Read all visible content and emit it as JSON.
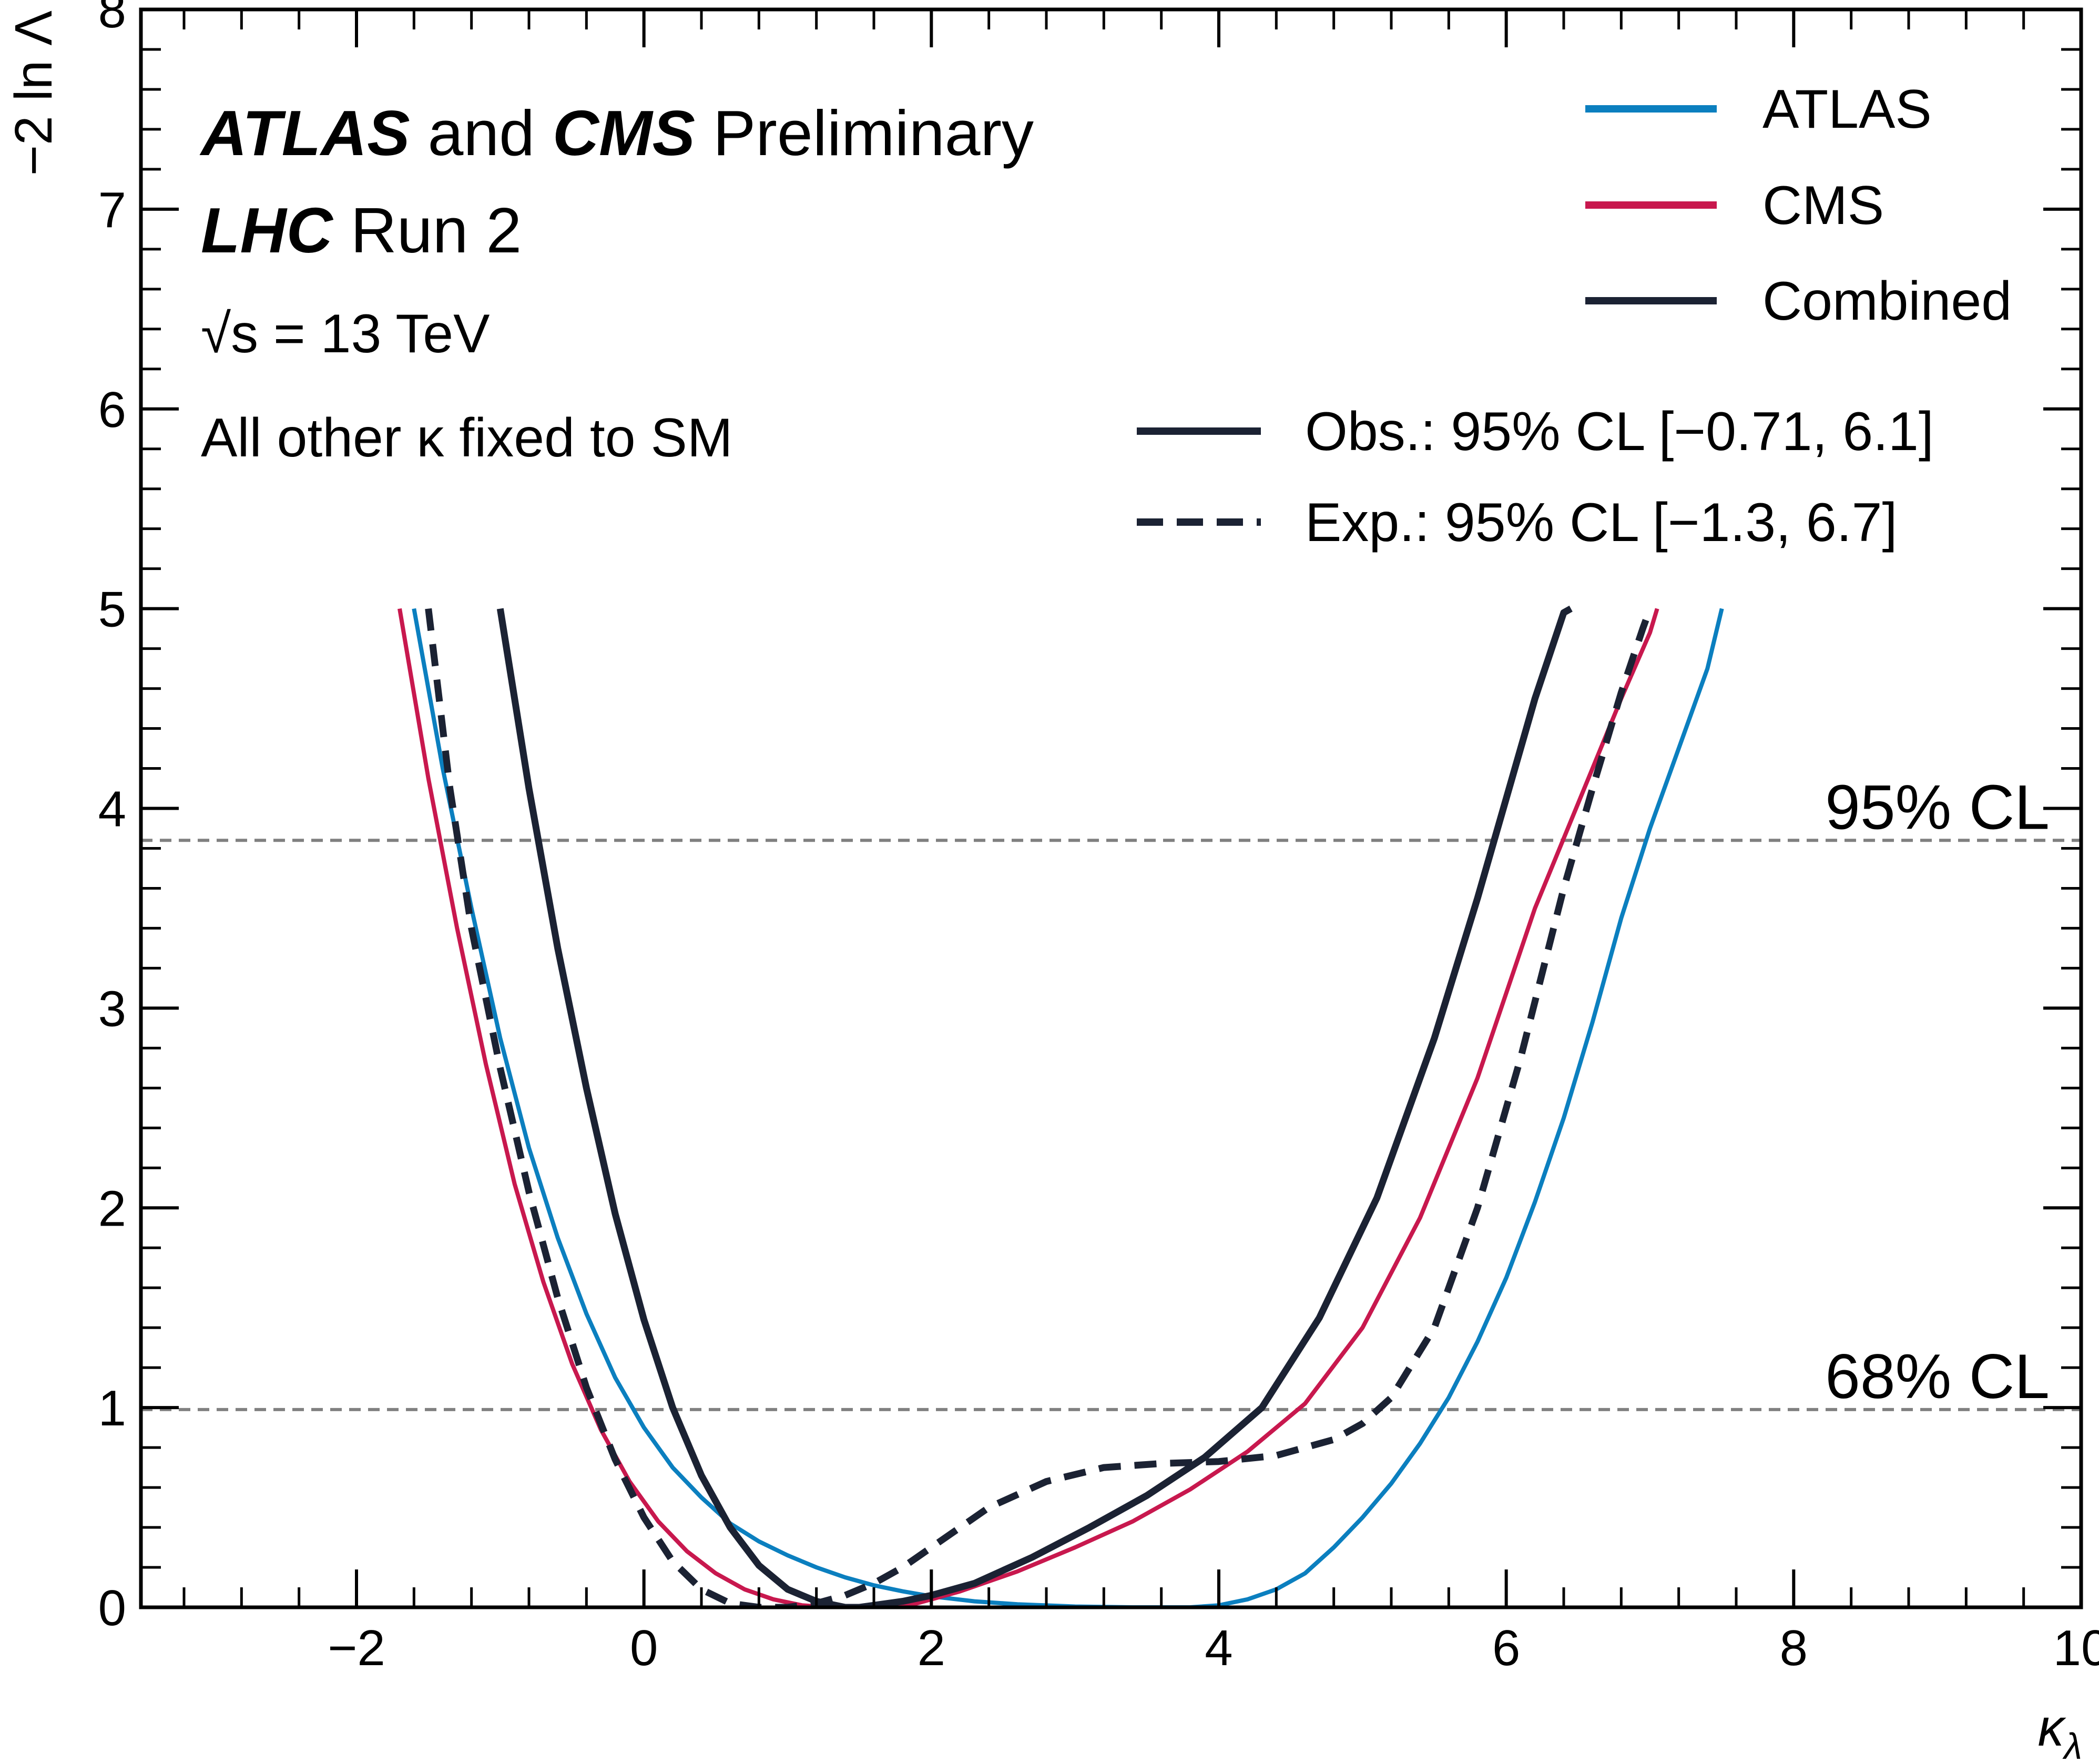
{
  "chart_data": {
    "type": "line",
    "xlabel_sym": "κ",
    "xlabel_sub": "λ",
    "ylabel": "−2 ln Λ",
    "xlim": [
      -3.5,
      10
    ],
    "ylim": [
      0,
      8
    ],
    "xticks": [
      -2,
      0,
      2,
      4,
      6,
      8,
      10
    ],
    "xtick_labels": [
      "−2",
      "0",
      "2",
      "4",
      "6",
      "8",
      "10"
    ],
    "yticks": [
      0,
      1,
      2,
      3,
      4,
      5,
      6,
      7,
      8
    ],
    "ytick_labels": [
      "0",
      "1",
      "2",
      "3",
      "4",
      "5",
      "6",
      "7",
      "8"
    ],
    "grid": false,
    "legend_position": "top-right",
    "annotations": {
      "experiment_bold1": "ATLAS",
      "experiment_and": " and ",
      "experiment_bold2": "CMS",
      "experiment_status": " Preliminary",
      "run_bold": "LHC",
      "run_text": " Run 2",
      "energy": "√s = 13 TeV",
      "assumption": "All other κ fixed to SM"
    },
    "reference_lines": [
      {
        "y": 3.84,
        "label": "95% CL",
        "color": "#808080",
        "style": "dashed"
      },
      {
        "y": 0.99,
        "label": "68% CL",
        "color": "#808080",
        "style": "dashed"
      }
    ],
    "legend_experiments": [
      {
        "name": "ATLAS",
        "color": "#0b7fbf"
      },
      {
        "name": "CMS",
        "color": "#c8184e"
      },
      {
        "name": "Combined",
        "color": "#1b2233"
      }
    ],
    "legend_styles": [
      {
        "name": "Obs.: 95% CL [−0.71, 6.1]",
        "style": "solid"
      },
      {
        "name": "Exp.:  95% CL [−1.3, 6.7]",
        "style": "dashed"
      }
    ],
    "series": [
      {
        "name": "ATLAS",
        "color": "#0b7fbf",
        "style": "solid",
        "x": [
          -1.6,
          -1.4,
          -1.2,
          -1.0,
          -0.8,
          -0.6,
          -0.4,
          -0.2,
          0.0,
          0.2,
          0.4,
          0.6,
          0.8,
          1.0,
          1.2,
          1.4,
          1.6,
          1.8,
          2.0,
          2.3,
          2.6,
          3.0,
          3.4,
          3.8,
          4.0,
          4.2,
          4.4,
          4.6,
          4.8,
          5.0,
          5.2,
          5.4,
          5.6,
          5.8,
          6.0,
          6.2,
          6.4,
          6.6,
          6.8,
          7.0,
          7.2,
          7.4,
          7.5
        ],
        "y": [
          5.0,
          4.2,
          3.5,
          2.85,
          2.3,
          1.85,
          1.47,
          1.15,
          0.9,
          0.7,
          0.55,
          0.42,
          0.33,
          0.26,
          0.2,
          0.15,
          0.11,
          0.08,
          0.055,
          0.03,
          0.015,
          0.004,
          0.0,
          0.0,
          0.01,
          0.04,
          0.09,
          0.17,
          0.3,
          0.45,
          0.62,
          0.82,
          1.05,
          1.33,
          1.65,
          2.03,
          2.45,
          2.93,
          3.45,
          3.9,
          4.3,
          4.7,
          5.0
        ]
      },
      {
        "name": "CMS",
        "color": "#c8184e",
        "style": "solid",
        "x": [
          -1.7,
          -1.5,
          -1.3,
          -1.1,
          -0.9,
          -0.7,
          -0.5,
          -0.3,
          -0.1,
          0.1,
          0.3,
          0.5,
          0.7,
          0.9,
          1.1,
          1.3,
          1.5,
          1.7,
          1.9,
          2.2,
          2.6,
          3.0,
          3.4,
          3.8,
          4.2,
          4.6,
          5.0,
          5.4,
          5.8,
          6.2,
          6.6,
          6.8,
          7.0,
          7.05
        ],
        "y": [
          5.0,
          4.15,
          3.4,
          2.72,
          2.12,
          1.63,
          1.22,
          0.89,
          0.63,
          0.43,
          0.28,
          0.17,
          0.09,
          0.04,
          0.01,
          0.0,
          0.0,
          0.0,
          0.02,
          0.08,
          0.18,
          0.3,
          0.43,
          0.59,
          0.78,
          1.02,
          1.4,
          1.95,
          2.65,
          3.5,
          4.2,
          4.55,
          4.88,
          5.0
        ]
      },
      {
        "name": "Combined",
        "color": "#1b2233",
        "style": "solid",
        "x": [
          -1.0,
          -0.8,
          -0.6,
          -0.4,
          -0.2,
          0.0,
          0.2,
          0.4,
          0.6,
          0.8,
          1.0,
          1.2,
          1.4,
          1.5,
          1.6,
          1.8,
          2.0,
          2.3,
          2.7,
          3.1,
          3.5,
          3.9,
          4.3,
          4.7,
          5.1,
          5.5,
          5.8,
          6.0,
          6.2,
          6.4,
          6.45
        ],
        "y": [
          5.0,
          4.1,
          3.3,
          2.6,
          1.97,
          1.44,
          1.0,
          0.66,
          0.4,
          0.21,
          0.09,
          0.03,
          0.0,
          0.0,
          0.01,
          0.03,
          0.06,
          0.12,
          0.25,
          0.4,
          0.56,
          0.75,
          1.0,
          1.45,
          2.05,
          2.85,
          3.55,
          4.05,
          4.55,
          4.98,
          5.0
        ]
      },
      {
        "name": "Combined expected",
        "color": "#1b2233",
        "style": "dashed",
        "x": [
          -1.5,
          -1.35,
          -1.2,
          -1.0,
          -0.8,
          -0.6,
          -0.4,
          -0.2,
          0.0,
          0.2,
          0.4,
          0.6,
          0.8,
          1.0,
          1.2,
          1.4,
          1.6,
          1.8,
          2.0,
          2.4,
          2.8,
          3.2,
          3.6,
          4.0,
          4.4,
          4.8,
          5.0,
          5.2,
          5.5,
          5.8,
          6.1,
          6.4,
          6.6,
          6.8,
          6.95,
          7.0
        ],
        "y": [
          5.0,
          4.1,
          3.4,
          2.7,
          2.08,
          1.55,
          1.1,
          0.74,
          0.45,
          0.23,
          0.09,
          0.02,
          0.0,
          0.0,
          0.02,
          0.06,
          0.12,
          0.2,
          0.3,
          0.5,
          0.63,
          0.7,
          0.72,
          0.73,
          0.76,
          0.84,
          0.92,
          1.05,
          1.4,
          2.0,
          2.75,
          3.6,
          4.1,
          4.58,
          4.9,
          5.0
        ]
      }
    ]
  }
}
